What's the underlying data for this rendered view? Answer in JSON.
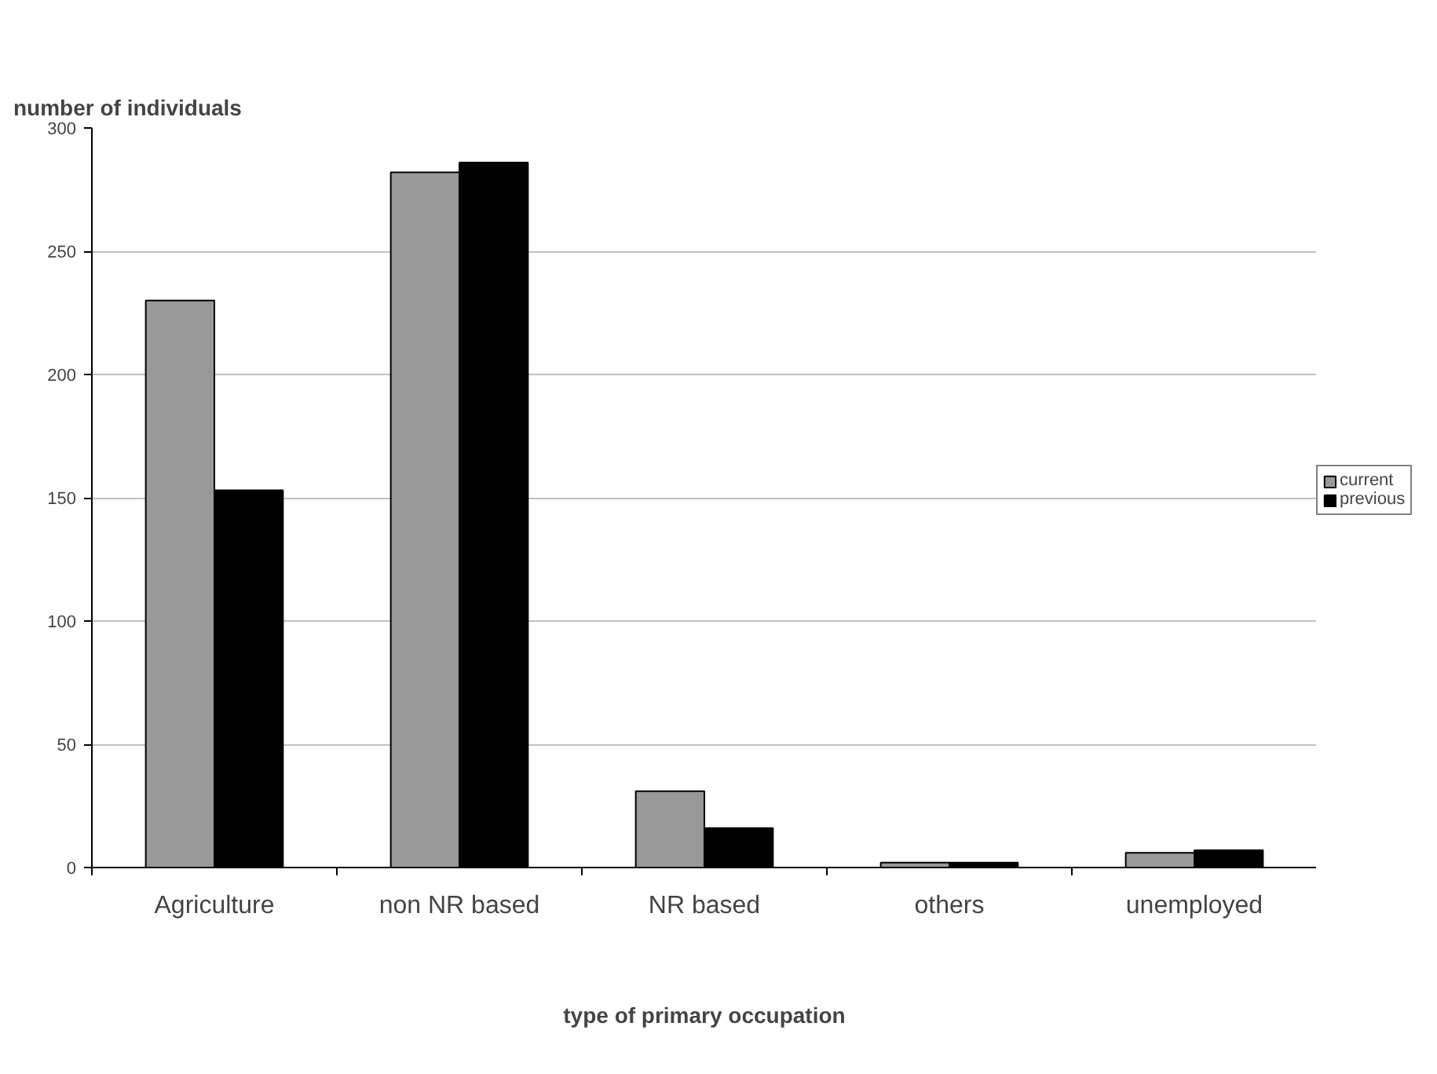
{
  "chart_data": {
    "type": "bar",
    "ylabel": "number of individuals",
    "xlabel": "type of primary occupation",
    "categories": [
      "Agriculture",
      "non NR based",
      "NR based",
      "others",
      "unemployed"
    ],
    "series": [
      {
        "name": "current",
        "color": "#999999",
        "values": [
          230,
          282,
          31,
          2,
          6
        ]
      },
      {
        "name": "previous",
        "color": "#000000",
        "values": [
          153,
          286,
          16,
          2,
          7
        ]
      }
    ],
    "ylim": [
      0,
      300
    ],
    "yticks": [
      0,
      50,
      100,
      150,
      200,
      250,
      300
    ],
    "grid": "y",
    "legend": "right"
  }
}
